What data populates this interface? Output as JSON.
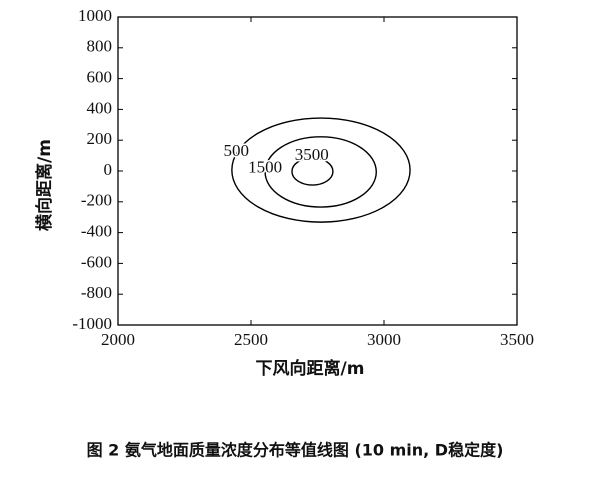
{
  "chart_data": {
    "type": "contour",
    "xlabel": "下风向距离/m",
    "ylabel": "横向距离/m",
    "caption": "图 2  氨气地面质量浓度分布等值线图 (10 min, D稳定度)",
    "xlim": [
      2000,
      3500
    ],
    "xticks": [
      2000,
      2500,
      3000,
      3500
    ],
    "ylim": [
      -1000,
      1000
    ],
    "yticks": [
      1000,
      800,
      600,
      400,
      200,
      0,
      -200,
      -400,
      -600,
      -800,
      -1000
    ],
    "color": "#000000",
    "contours": [
      {
        "level": 500,
        "cx": 2763,
        "cy": 6,
        "rx": 335,
        "ry": 338
      },
      {
        "level": 1500,
        "cx": 2762,
        "cy": -6,
        "rx": 209,
        "ry": 228
      },
      {
        "level": 3500,
        "cx": 2731,
        "cy": -3,
        "rx": 77,
        "ry": 88
      }
    ]
  }
}
